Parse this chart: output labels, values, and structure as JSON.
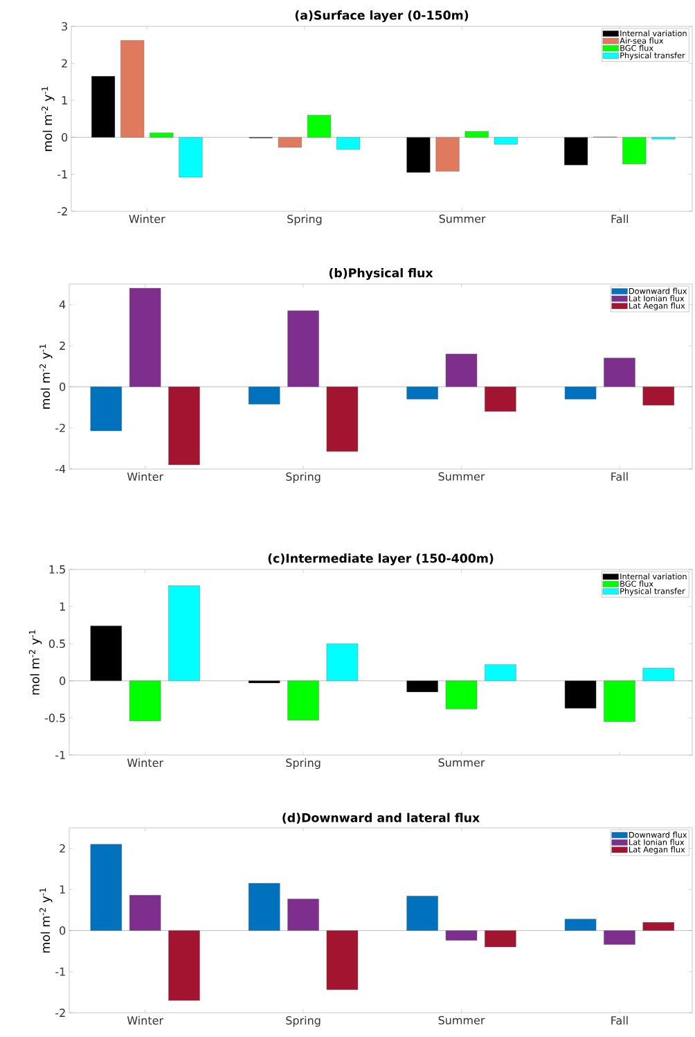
{
  "chart_data": [
    {
      "type": "bar",
      "title": "(a)Surface layer (0-150m)",
      "ylabel": "mol m$^{-2}$ y$^{-1}$",
      "categories": [
        "Winter",
        "Spring",
        "Summer",
        "Fall"
      ],
      "ylim": [
        -2,
        3
      ],
      "yticks": [
        -2,
        -1,
        0,
        1,
        2,
        3
      ],
      "legend": "top right",
      "series": [
        {
          "name": "Internal variation",
          "color": "#000000",
          "values": [
            1.65,
            -0.02,
            -0.95,
            -0.75
          ]
        },
        {
          "name": "Air-sea flux",
          "color": "#e07a5f",
          "values": [
            2.62,
            -0.27,
            -0.92,
            0.01
          ]
        },
        {
          "name": "BGC flux",
          "color": "#00ff00",
          "values": [
            0.12,
            0.6,
            0.16,
            -0.72
          ]
        },
        {
          "name": "Physical transfer",
          "color": "#00ffff",
          "values": [
            -1.08,
            -0.33,
            -0.19,
            -0.05
          ]
        }
      ]
    },
    {
      "type": "bar",
      "title": "(b)Physical flux",
      "ylabel": "mol m$^{-2}$ y$^{-1}$",
      "categories": [
        "Winter",
        "Spring",
        "Summer",
        "Fall"
      ],
      "ylim": [
        -4,
        5
      ],
      "yticks": [
        -4,
        -2,
        0,
        2,
        4
      ],
      "legend": "top right",
      "series": [
        {
          "name": "Downward flux",
          "color": "#0072bd",
          "values": [
            -2.15,
            -0.85,
            -0.6,
            -0.6
          ]
        },
        {
          "name": "Lat Ionian flux",
          "color": "#7e2f8e",
          "values": [
            4.8,
            3.7,
            1.6,
            1.4
          ]
        },
        {
          "name": "Lat Aegan flux",
          "color": "#a2142f",
          "values": [
            -3.8,
            -3.15,
            -1.2,
            -0.9
          ]
        }
      ]
    },
    {
      "type": "bar",
      "title": "(c)Intermediate layer (150-400m)",
      "ylabel": "mol m$^{-2}$ y$^{-1}$",
      "categories": [
        "Winter",
        "Spring",
        "Summer",
        null
      ],
      "ylim": [
        -1,
        1.5
      ],
      "yticks": [
        -1,
        -0.5,
        0,
        0.5,
        1,
        1.5
      ],
      "legend": "top right",
      "series": [
        {
          "name": "Internal variation",
          "color": "#000000",
          "values": [
            0.74,
            -0.03,
            -0.15,
            -0.37
          ]
        },
        {
          "name": "BGC flux",
          "color": "#00ff00",
          "values": [
            -0.54,
            -0.53,
            -0.38,
            -0.55
          ]
        },
        {
          "name": "Physical transfer",
          "color": "#00ffff",
          "values": [
            1.28,
            0.5,
            0.22,
            0.17
          ]
        }
      ]
    },
    {
      "type": "bar",
      "title": "(d)Downward and lateral flux",
      "ylabel": "mol m$^{-2}$ y$^{-1}$",
      "categories": [
        "Winter",
        "Spring",
        "Summer",
        "Fall"
      ],
      "ylim": [
        -2,
        2.5
      ],
      "yticks": [
        -2,
        -1,
        0,
        1,
        2
      ],
      "legend": "top right",
      "series": [
        {
          "name": "Downward flux",
          "color": "#0072bd",
          "values": [
            2.1,
            1.15,
            0.84,
            0.28
          ]
        },
        {
          "name": "Lat Ionian flux",
          "color": "#7e2f8e",
          "values": [
            0.86,
            0.77,
            -0.24,
            -0.34
          ]
        },
        {
          "name": "Lat Aegan flux",
          "color": "#a2142f",
          "values": [
            -1.7,
            -1.44,
            -0.4,
            0.2
          ]
        }
      ]
    }
  ]
}
